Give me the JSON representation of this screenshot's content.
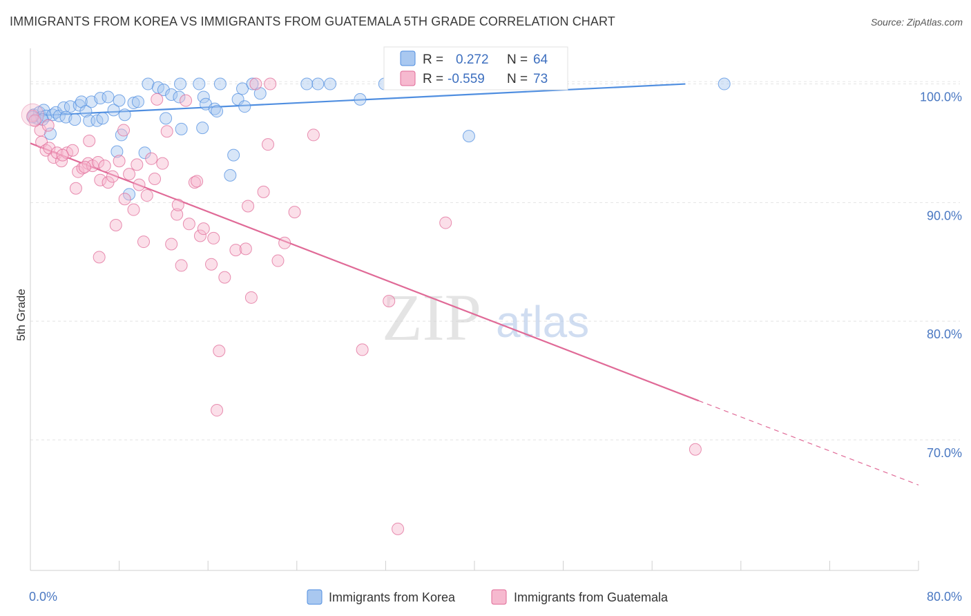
{
  "title": "IMMIGRANTS FROM KOREA VS IMMIGRANTS FROM GUATEMALA 5TH GRADE CORRELATION CHART",
  "source": "Source: ZipAtlas.com",
  "watermark": {
    "zip": "ZIP",
    "atlas": "atlas"
  },
  "chart_data": {
    "type": "scatter",
    "title": "IMMIGRANTS FROM KOREA VS IMMIGRANTS FROM GUATEMALA 5TH GRADE CORRELATION CHART",
    "xlabel": "",
    "ylabel": "5th Grade",
    "xlim": [
      0,
      80
    ],
    "ylim": [
      59,
      103
    ],
    "x_tick_labels": [
      "0.0%",
      "80.0%"
    ],
    "y_ticks": [
      100,
      90,
      80,
      70
    ],
    "y_tick_labels": [
      "100.0%",
      "90.0%",
      "80.0%",
      "70.0%"
    ],
    "grid": true,
    "legend_position": "bottom",
    "stats": [
      {
        "r_label": "R =",
        "r": "0.272",
        "n_label": "N =",
        "n": "64"
      },
      {
        "r_label": "R =",
        "r": "-0.559",
        "n_label": "N =",
        "n": "73"
      }
    ],
    "series": [
      {
        "name": "Immigrants from Korea",
        "color": "#4f8ee0",
        "fill": "#a9c8f0",
        "trend": {
          "x": [
            0,
            59
          ],
          "y": [
            97.3,
            100.0
          ],
          "dashed_to": null
        },
        "points": [
          [
            0.3,
            97.4
          ],
          [
            0.6,
            97.1
          ],
          [
            0.8,
            97.6
          ],
          [
            1.0,
            97.2
          ],
          [
            1.2,
            97.8
          ],
          [
            1.4,
            97.3
          ],
          [
            1.8,
            95.8
          ],
          [
            2.0,
            97.4
          ],
          [
            2.3,
            97.6
          ],
          [
            2.6,
            97.3
          ],
          [
            3.0,
            98.0
          ],
          [
            3.2,
            97.2
          ],
          [
            3.6,
            98.1
          ],
          [
            4.0,
            97.0
          ],
          [
            4.4,
            98.2
          ],
          [
            4.6,
            98.5
          ],
          [
            5.0,
            97.7
          ],
          [
            5.3,
            96.9
          ],
          [
            5.5,
            98.5
          ],
          [
            6.0,
            96.9
          ],
          [
            6.3,
            98.8
          ],
          [
            6.5,
            97.1
          ],
          [
            7.0,
            98.9
          ],
          [
            7.5,
            97.8
          ],
          [
            7.8,
            94.3
          ],
          [
            8.0,
            98.6
          ],
          [
            8.2,
            95.7
          ],
          [
            8.5,
            97.4
          ],
          [
            8.9,
            90.7
          ],
          [
            9.3,
            98.4
          ],
          [
            9.7,
            98.5
          ],
          [
            10.3,
            94.2
          ],
          [
            10.6,
            100.0
          ],
          [
            11.5,
            99.7
          ],
          [
            12.0,
            99.5
          ],
          [
            12.2,
            97.1
          ],
          [
            12.7,
            99.1
          ],
          [
            13.4,
            98.9
          ],
          [
            13.5,
            100.0
          ],
          [
            13.6,
            96.2
          ],
          [
            15.2,
            100.0
          ],
          [
            15.5,
            96.3
          ],
          [
            15.6,
            98.9
          ],
          [
            15.8,
            98.3
          ],
          [
            16.6,
            97.9
          ],
          [
            16.8,
            97.7
          ],
          [
            17.1,
            100.0
          ],
          [
            18.0,
            92.3
          ],
          [
            18.3,
            94.0
          ],
          [
            18.7,
            98.7
          ],
          [
            19.1,
            99.6
          ],
          [
            19.3,
            98.1
          ],
          [
            20.0,
            100.0
          ],
          [
            20.7,
            99.2
          ],
          [
            24.9,
            100.0
          ],
          [
            25.9,
            100.0
          ],
          [
            27.0,
            100.0
          ],
          [
            29.7,
            98.7
          ],
          [
            31.9,
            100.0
          ],
          [
            33.0,
            100.0
          ],
          [
            39.5,
            95.6
          ],
          [
            62.5,
            100.0
          ],
          [
            0.2,
            97.2
          ],
          [
            1.1,
            97.0
          ]
        ]
      },
      {
        "name": "Immigrants from Guatemala",
        "color": "#e06a97",
        "fill": "#f6b9cf",
        "trend": {
          "x": [
            0,
            60.2
          ],
          "y": [
            95.0,
            73.3
          ],
          "dashed_to": [
            80,
            66.2
          ]
        },
        "points": [
          [
            0.2,
            97.3
          ],
          [
            0.9,
            96.1
          ],
          [
            1.0,
            95.1
          ],
          [
            1.4,
            94.4
          ],
          [
            1.7,
            94.6
          ],
          [
            2.1,
            93.8
          ],
          [
            2.4,
            94.2
          ],
          [
            2.8,
            93.5
          ],
          [
            3.3,
            94.2
          ],
          [
            3.8,
            94.4
          ],
          [
            4.1,
            91.2
          ],
          [
            4.3,
            92.6
          ],
          [
            4.7,
            92.9
          ],
          [
            5.2,
            93.3
          ],
          [
            5.3,
            95.2
          ],
          [
            5.6,
            93.1
          ],
          [
            6.1,
            93.4
          ],
          [
            6.2,
            85.4
          ],
          [
            6.3,
            91.9
          ],
          [
            6.7,
            93.1
          ],
          [
            7.0,
            91.7
          ],
          [
            7.4,
            92.2
          ],
          [
            7.7,
            88.1
          ],
          [
            8.0,
            93.5
          ],
          [
            8.4,
            96.1
          ],
          [
            8.5,
            90.3
          ],
          [
            8.9,
            92.4
          ],
          [
            9.3,
            89.4
          ],
          [
            9.6,
            93.2
          ],
          [
            9.8,
            91.5
          ],
          [
            10.2,
            86.7
          ],
          [
            10.5,
            90.6
          ],
          [
            10.9,
            93.7
          ],
          [
            11.2,
            92.0
          ],
          [
            11.4,
            98.7
          ],
          [
            11.9,
            93.3
          ],
          [
            12.3,
            96.0
          ],
          [
            12.7,
            86.5
          ],
          [
            13.2,
            89.0
          ],
          [
            13.3,
            89.8
          ],
          [
            13.6,
            84.7
          ],
          [
            14.0,
            98.6
          ],
          [
            14.3,
            88.2
          ],
          [
            14.8,
            91.7
          ],
          [
            15.0,
            91.8
          ],
          [
            15.3,
            87.2
          ],
          [
            15.6,
            87.8
          ],
          [
            16.3,
            84.8
          ],
          [
            16.5,
            87.0
          ],
          [
            16.8,
            72.5
          ],
          [
            17.0,
            77.5
          ],
          [
            17.5,
            83.7
          ],
          [
            18.5,
            86.0
          ],
          [
            19.4,
            86.1
          ],
          [
            19.6,
            89.7
          ],
          [
            19.9,
            82.0
          ],
          [
            20.3,
            100.0
          ],
          [
            21.0,
            90.9
          ],
          [
            21.4,
            94.9
          ],
          [
            21.6,
            100.0
          ],
          [
            22.3,
            85.1
          ],
          [
            22.9,
            86.6
          ],
          [
            23.8,
            89.2
          ],
          [
            25.5,
            95.7
          ],
          [
            29.9,
            77.6
          ],
          [
            32.3,
            81.7
          ],
          [
            33.1,
            62.5
          ],
          [
            37.4,
            88.3
          ],
          [
            59.9,
            69.2
          ],
          [
            0.4,
            96.9
          ],
          [
            1.6,
            96.5
          ],
          [
            2.9,
            94.0
          ],
          [
            4.9,
            93.0
          ]
        ]
      }
    ]
  },
  "legend": {
    "items": [
      {
        "label": "Immigrants from Korea"
      },
      {
        "label": "Immigrants from Guatemala"
      }
    ]
  }
}
